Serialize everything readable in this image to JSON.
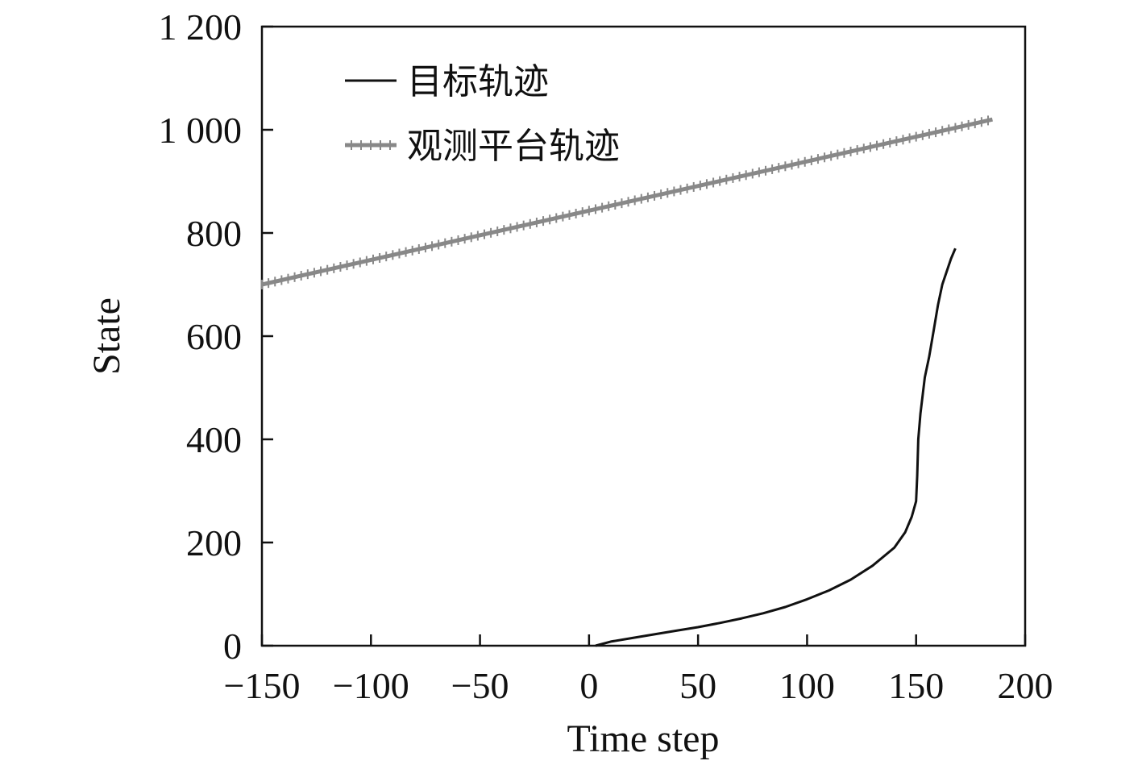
{
  "chart_data": {
    "type": "line",
    "title": "",
    "xlabel": "Time step",
    "ylabel": "State",
    "xlim": [
      -150,
      200
    ],
    "ylim": [
      0,
      1200
    ],
    "xticks": [
      -150,
      -100,
      -50,
      0,
      50,
      100,
      150,
      200
    ],
    "xtick_labels": [
      "−150",
      "−100",
      "−50",
      "0",
      "50",
      "100",
      "150",
      "200"
    ],
    "yticks": [
      0,
      200,
      400,
      600,
      800,
      1000,
      1200
    ],
    "ytick_labels": [
      "0",
      "200",
      "400",
      "600",
      "800",
      "1 000",
      "1 200"
    ],
    "grid": false,
    "legend_position": "top-left",
    "series": [
      {
        "name": "目标轨迹",
        "color": "#111111",
        "marker": "none",
        "x": [
          3,
          10,
          20,
          30,
          40,
          50,
          60,
          70,
          80,
          90,
          100,
          110,
          120,
          130,
          140,
          145,
          148,
          150,
          150.5,
          151,
          152,
          154,
          156,
          158,
          160,
          162,
          164,
          166,
          168
        ],
        "y": [
          0,
          8,
          15,
          22,
          29,
          36,
          44,
          53,
          63,
          75,
          90,
          107,
          128,
          155,
          190,
          220,
          250,
          280,
          330,
          400,
          450,
          520,
          560,
          610,
          660,
          700,
          725,
          750,
          770
        ]
      },
      {
        "name": "观测平台轨迹",
        "color": "#888888",
        "marker": "plus",
        "x_start": -150,
        "x_end": 185,
        "y_start": 700,
        "y_end": 1020,
        "step": 3
      }
    ]
  }
}
